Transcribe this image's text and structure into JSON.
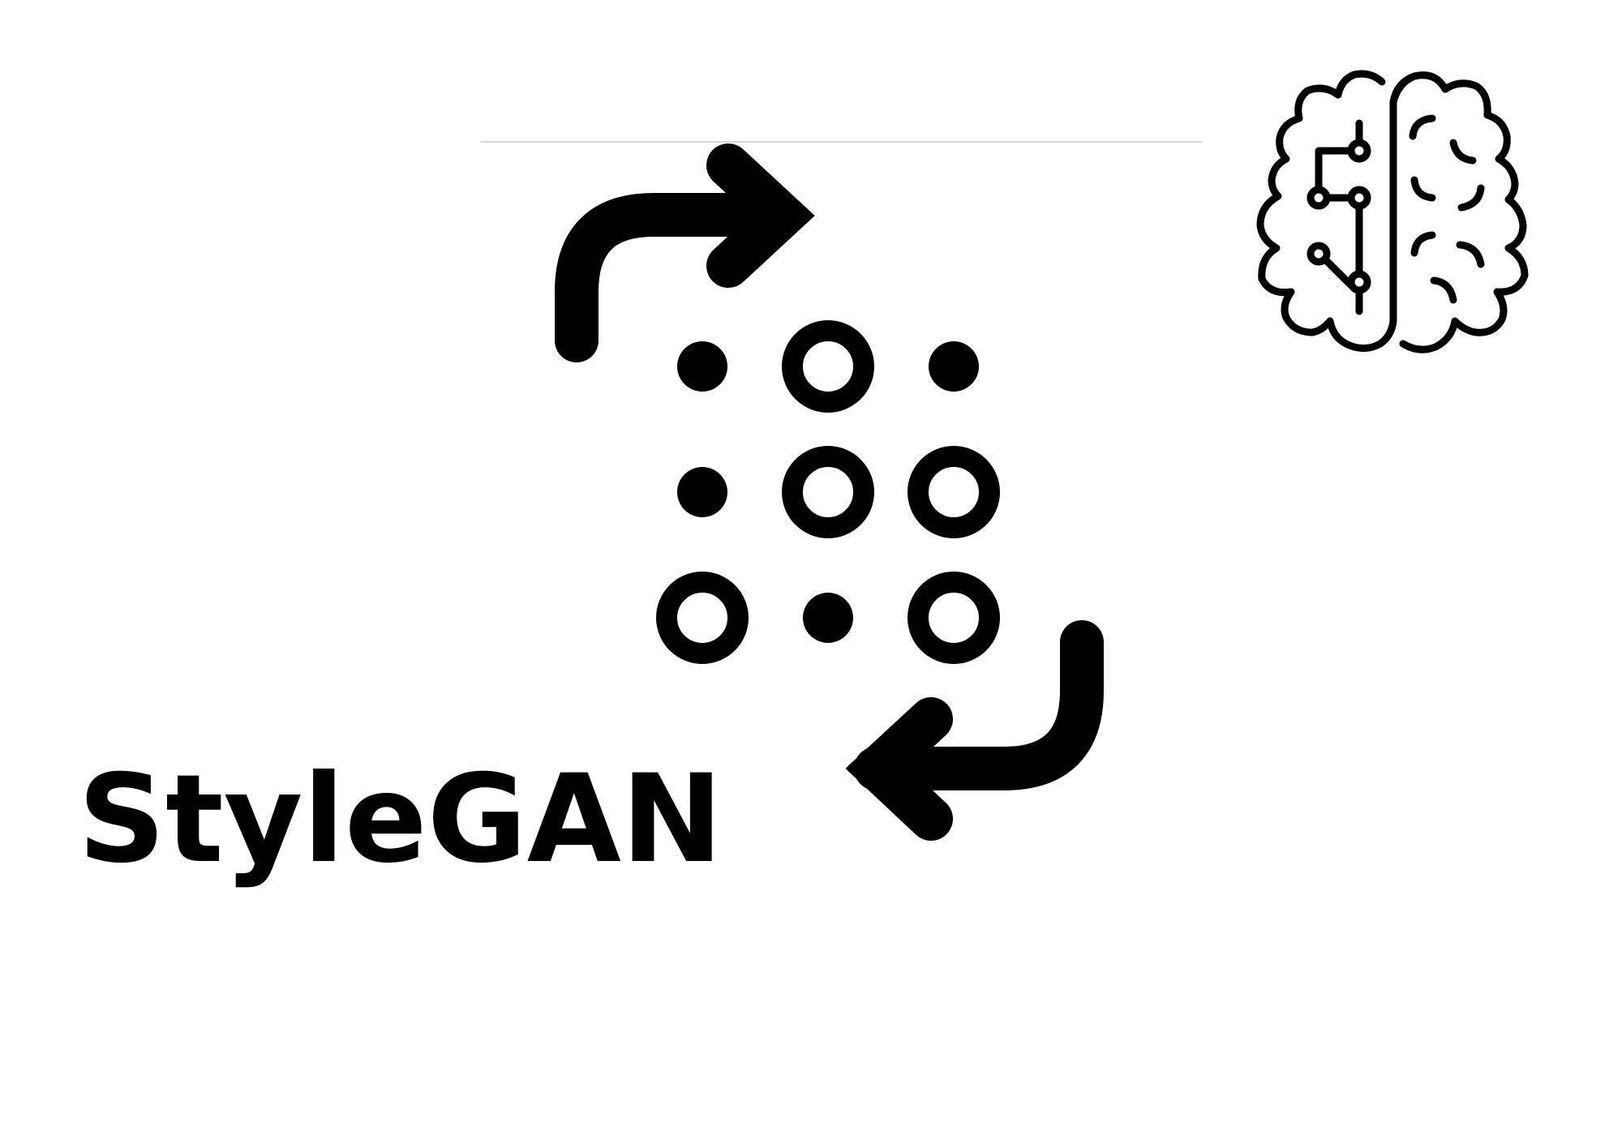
{
  "title": "StyleGAN",
  "colors": {
    "ink": "#000000",
    "background": "#ffffff",
    "rule": "#d9d9d9"
  },
  "icons": [
    "arrow-curve-right-icon",
    "arrow-curve-left-icon",
    "brain-circuit-icon"
  ],
  "dot_grid": {
    "rows": 3,
    "cols": 3,
    "pattern": [
      [
        "filled",
        "ring",
        "filled"
      ],
      [
        "filled",
        "ring",
        "ring"
      ],
      [
        "ring",
        "filled",
        "ring"
      ]
    ]
  }
}
